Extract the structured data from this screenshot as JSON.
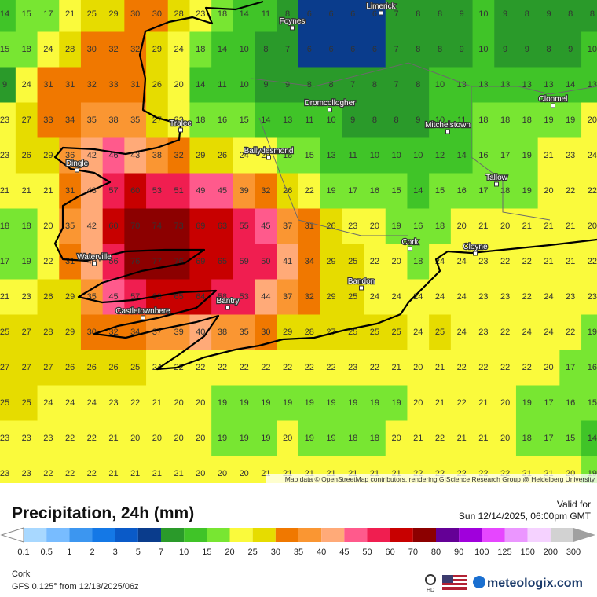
{
  "header": {
    "title": "Precipitation, 24h (mm)",
    "valid_label": "Valid for",
    "valid_time": "Sun 12/14/2025, 06:00pm GMT"
  },
  "footer": {
    "location": "Cork",
    "model": "GFS 0.125° from  12/13/2025/06z",
    "badge": "HD",
    "brand": "meteologix.com"
  },
  "attribution": "Map data © OpenStreetMap contributors, rendering GIScience Research Group @ Heidelberg University",
  "places": [
    "Limerick",
    "Foynes",
    "Dromcollogher",
    "Clonmel",
    "Tralee",
    "Mitchelstown",
    "Ballydesmond",
    "Dingle",
    "Tallow",
    "Cork",
    "Cloyne",
    "Waterville",
    "Bandon",
    "Bantry",
    "Castletownbere"
  ],
  "legend": {
    "levels": [
      0.1,
      0.5,
      1,
      2,
      3,
      5,
      7,
      10,
      15,
      20,
      25,
      30,
      35,
      40,
      45,
      50,
      60,
      70,
      80,
      90,
      100,
      125,
      150,
      200,
      300
    ],
    "colors": [
      "#a8d8ff",
      "#78bcff",
      "#3c96f0",
      "#1478e6",
      "#0a5ac8",
      "#0a3c8c",
      "#2a9a2a",
      "#40c428",
      "#78e632",
      "#fafa3c",
      "#e6dc00",
      "#f07800",
      "#fa9632",
      "#ffaa78",
      "#ff5a8c",
      "#f01e50",
      "#c80000",
      "#8c0000",
      "#640096",
      "#a000dc",
      "#e646ff",
      "#eb96ff",
      "#f5d2ff",
      "#d2d2d2",
      "#a0a0a0"
    ]
  },
  "grid": {
    "rows": [
      [
        14,
        15,
        17,
        21,
        25,
        29,
        30,
        30,
        28,
        23,
        18,
        14,
        11,
        8,
        6,
        6,
        6,
        6,
        7,
        8,
        8,
        9,
        10,
        9,
        8,
        9,
        8,
        8
      ],
      [
        15,
        18,
        24,
        28,
        30,
        32,
        32,
        29,
        24,
        18,
        14,
        10,
        8,
        7,
        6,
        6,
        6,
        6,
        7,
        8,
        8,
        9,
        10,
        9,
        9,
        8,
        9,
        10
      ],
      [
        9,
        24,
        31,
        31,
        32,
        33,
        31,
        26,
        20,
        14,
        11,
        10,
        9,
        9,
        8,
        8,
        7,
        8,
        7,
        8,
        10,
        13,
        13,
        13,
        13,
        13,
        14,
        13
      ],
      [
        23,
        27,
        33,
        34,
        35,
        38,
        35,
        27,
        22,
        18,
        16,
        15,
        14,
        13,
        11,
        10,
        9,
        8,
        8,
        9,
        10,
        11,
        18,
        18,
        18,
        19,
        19,
        20
      ],
      [
        23,
        26,
        29,
        36,
        42,
        46,
        43,
        38,
        32,
        29,
        26,
        24,
        20,
        18,
        15,
        13,
        11,
        10,
        10,
        10,
        12,
        14,
        16,
        17,
        19,
        21,
        23,
        24
      ],
      [
        21,
        21,
        21,
        31,
        43,
        57,
        60,
        53,
        51,
        49,
        45,
        39,
        32,
        26,
        22,
        19,
        17,
        16,
        15,
        14,
        15,
        16,
        17,
        18,
        19,
        20,
        22,
        22
      ],
      [
        18,
        18,
        20,
        35,
        42,
        60,
        70,
        74,
        73,
        69,
        63,
        55,
        45,
        37,
        31,
        26,
        23,
        20,
        19,
        16,
        18,
        20,
        21,
        20,
        21,
        21,
        21,
        20
      ],
      [
        17,
        19,
        22,
        31,
        40,
        56,
        76,
        77,
        76,
        69,
        65,
        59,
        50,
        41,
        34,
        29,
        25,
        22,
        20,
        18,
        24,
        24,
        23,
        22,
        22,
        21,
        21,
        22
      ],
      [
        21,
        23,
        26,
        29,
        35,
        45,
        57,
        63,
        65,
        64,
        58,
        53,
        44,
        37,
        32,
        29,
        25,
        24,
        24,
        24,
        24,
        24,
        23,
        23,
        22,
        24,
        23,
        23
      ],
      [
        25,
        27,
        28,
        29,
        30,
        32,
        34,
        37,
        39,
        40,
        38,
        35,
        30,
        29,
        28,
        27,
        25,
        25,
        25,
        24,
        25,
        24,
        23,
        22,
        24,
        24,
        22,
        19
      ],
      [
        27,
        27,
        27,
        26,
        26,
        26,
        25,
        24,
        22,
        22,
        22,
        22,
        22,
        22,
        22,
        22,
        23,
        22,
        21,
        20,
        21,
        22,
        22,
        22,
        22,
        20,
        17,
        16
      ],
      [
        25,
        25,
        24,
        24,
        24,
        23,
        22,
        21,
        20,
        20,
        19,
        19,
        19,
        19,
        19,
        19,
        19,
        19,
        19,
        20,
        21,
        22,
        21,
        20,
        19,
        17,
        16,
        15
      ],
      [
        23,
        23,
        23,
        22,
        22,
        21,
        20,
        20,
        20,
        20,
        19,
        19,
        19,
        20,
        19,
        19,
        18,
        18,
        20,
        21,
        22,
        21,
        21,
        20,
        18,
        17,
        15,
        14
      ],
      [
        23,
        23,
        22,
        22,
        22,
        21,
        21,
        21,
        21,
        20,
        20,
        20,
        21,
        21,
        21,
        21,
        21,
        21,
        21,
        22,
        22,
        22,
        22,
        22,
        21,
        21,
        20,
        19
      ]
    ]
  }
}
